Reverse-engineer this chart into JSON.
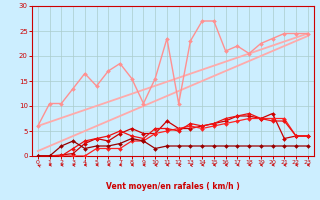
{
  "bg_color": "#cceeff",
  "grid_color": "#aacccc",
  "xlabel": "Vent moyen/en rafales ( km/h )",
  "xlim": [
    -0.5,
    23.5
  ],
  "ylim": [
    0,
    30
  ],
  "yticks": [
    0,
    5,
    10,
    15,
    20,
    25,
    30
  ],
  "xticks": [
    0,
    1,
    2,
    3,
    4,
    5,
    6,
    7,
    8,
    9,
    10,
    11,
    12,
    13,
    14,
    15,
    16,
    17,
    18,
    19,
    20,
    21,
    22,
    23
  ],
  "line1_x": [
    0,
    1,
    2,
    3,
    4,
    5,
    6,
    7,
    8,
    9,
    10,
    11,
    12,
    13,
    14,
    15,
    16,
    17,
    18,
    19,
    20,
    21,
    22,
    23
  ],
  "line1_y": [
    6.0,
    10.5,
    10.5,
    13.5,
    16.5,
    14.0,
    17.0,
    18.5,
    15.5,
    10.5,
    15.5,
    23.5,
    10.5,
    23.0,
    27.0,
    27.0,
    21.0,
    22.0,
    20.5,
    22.5,
    23.5,
    24.5,
    24.5,
    24.5
  ],
  "line1_color": "#ff9090",
  "line2_x": [
    0,
    23
  ],
  "line2_y": [
    1.0,
    24.0
  ],
  "line2_color": "#ffaaaa",
  "line3_x": [
    0,
    23
  ],
  "line3_y": [
    6.0,
    24.5
  ],
  "line3_color": "#ffaaaa",
  "line4_x": [
    0,
    1,
    2,
    3,
    4,
    5,
    6,
    7,
    8,
    9,
    10,
    11,
    12,
    13,
    14,
    15,
    16,
    17,
    18,
    19,
    20,
    21,
    22,
    23
  ],
  "line4_y": [
    0.0,
    0.0,
    0.2,
    0.5,
    2.5,
    3.5,
    3.0,
    4.5,
    5.5,
    4.5,
    4.5,
    7.0,
    5.5,
    5.5,
    6.0,
    6.5,
    7.0,
    8.0,
    8.0,
    7.5,
    8.5,
    3.5,
    4.0,
    4.0
  ],
  "line4_color": "#cc0000",
  "line5_x": [
    0,
    1,
    2,
    3,
    4,
    5,
    6,
    7,
    8,
    9,
    10,
    11,
    12,
    13,
    14,
    15,
    16,
    17,
    18,
    19,
    20,
    21,
    22,
    23
  ],
  "line5_y": [
    0.0,
    0.0,
    0.0,
    0.0,
    0.0,
    1.5,
    1.5,
    1.5,
    3.0,
    3.0,
    4.5,
    5.0,
    5.5,
    6.0,
    5.5,
    6.0,
    6.5,
    7.0,
    7.5,
    7.5,
    7.5,
    7.5,
    4.0,
    4.0
  ],
  "line5_color": "#ff2222",
  "line6_x": [
    0,
    1,
    2,
    3,
    4,
    5,
    6,
    7,
    8,
    9,
    10,
    11,
    12,
    13,
    14,
    15,
    16,
    17,
    18,
    19,
    20,
    21,
    22,
    23
  ],
  "line6_y": [
    0.0,
    0.0,
    0.0,
    1.5,
    3.0,
    3.5,
    4.0,
    5.0,
    4.0,
    3.5,
    5.5,
    5.5,
    5.0,
    6.5,
    6.0,
    6.5,
    7.5,
    8.0,
    8.5,
    7.5,
    7.0,
    7.0,
    4.0,
    4.0
  ],
  "line6_color": "#ee1111",
  "line7_x": [
    0,
    1,
    2,
    3,
    4,
    5,
    6,
    7,
    8,
    9,
    10,
    11,
    12,
    13,
    14,
    15,
    16,
    17,
    18,
    19,
    20,
    21,
    22,
    23
  ],
  "line7_y": [
    0.0,
    0.0,
    2.0,
    3.0,
    1.5,
    2.0,
    2.0,
    2.5,
    3.5,
    3.0,
    1.5,
    2.0,
    2.0,
    2.0,
    2.0,
    2.0,
    2.0,
    2.0,
    2.0,
    2.0,
    2.0,
    2.0,
    2.0,
    2.0
  ],
  "line7_color": "#990000",
  "marker": "D",
  "markersize": 2.0,
  "arrow_color": "#cc0000",
  "arrows_x": [
    0,
    1,
    2,
    3,
    4,
    5,
    6,
    7,
    8,
    9,
    10,
    11,
    12,
    13,
    14,
    15,
    16,
    17,
    18,
    19,
    20,
    21,
    22,
    23
  ],
  "arrow_angles": [
    225,
    270,
    260,
    250,
    265,
    270,
    265,
    270,
    270,
    260,
    250,
    270,
    245,
    240,
    270,
    265,
    255,
    270,
    260,
    260,
    270,
    255,
    255,
    260
  ]
}
